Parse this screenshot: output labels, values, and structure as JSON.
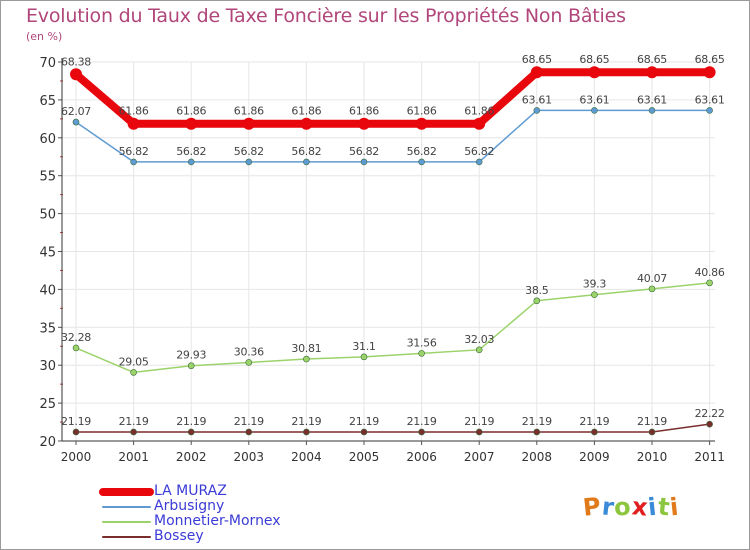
{
  "title": "Evolution du Taux de Taxe Foncière sur les Propriétés Non Bâties",
  "unit": "(en %)",
  "logo_letters": [
    "P",
    "r",
    "o",
    "x",
    "i",
    "t",
    "i"
  ],
  "colors": {
    "title": "#b0467a",
    "legend_text": "#3b3bd6",
    "axis": "#333333",
    "grid": "#e6e6e6"
  },
  "chart_data": {
    "type": "line",
    "x": [
      "2000",
      "2001",
      "2002",
      "2003",
      "2004",
      "2005",
      "2006",
      "2007",
      "2008",
      "2009",
      "2010",
      "2011"
    ],
    "ylim": [
      20,
      70
    ],
    "yticks": [
      20,
      25,
      30,
      35,
      40,
      45,
      50,
      55,
      60,
      65,
      70
    ],
    "grid": true,
    "legend_position": "bottom-left",
    "series": [
      {
        "name": "LA MURAZ",
        "color": "#e8070d",
        "values": [
          68.38,
          61.86,
          61.86,
          61.86,
          61.86,
          61.86,
          61.86,
          61.86,
          68.65,
          68.65,
          68.65,
          68.65
        ],
        "labels": [
          "68.38",
          "61.86",
          "61.86",
          "61.86",
          "61.86",
          "61.86",
          "61.86",
          "61.86",
          "68.65",
          "68.65",
          "68.65",
          "68.65"
        ]
      },
      {
        "name": "Arbusigny",
        "color": "#5f9bd3",
        "values": [
          62.07,
          56.82,
          56.82,
          56.82,
          56.82,
          56.82,
          56.82,
          56.82,
          63.61,
          63.61,
          63.61,
          63.61
        ],
        "labels": [
          "62.07",
          "56.82",
          "56.82",
          "56.82",
          "56.82",
          "56.82",
          "56.82",
          "56.82",
          "63.61",
          "63.61",
          "63.61",
          "63.61"
        ]
      },
      {
        "name": "Monnetier-Mornex",
        "color": "#9bd36a",
        "values": [
          32.28,
          29.05,
          29.93,
          30.36,
          30.81,
          31.1,
          31.56,
          32.03,
          38.5,
          39.3,
          40.07,
          40.86
        ],
        "labels": [
          "32.28",
          "29.05",
          "29.93",
          "30.36",
          "30.81",
          "31.1",
          "31.56",
          "32.03",
          "38.5",
          "39.3",
          "40.07",
          "40.86"
        ]
      },
      {
        "name": "Bossey",
        "color": "#7a2d2d",
        "values": [
          21.19,
          21.19,
          21.19,
          21.19,
          21.19,
          21.19,
          21.19,
          21.19,
          21.19,
          21.19,
          21.19,
          22.22
        ],
        "labels": [
          "21.19",
          "21.19",
          "21.19",
          "21.19",
          "21.19",
          "21.19",
          "21.19",
          "21.19",
          "21.19",
          "21.19",
          "21.19",
          "22.22"
        ]
      }
    ]
  }
}
